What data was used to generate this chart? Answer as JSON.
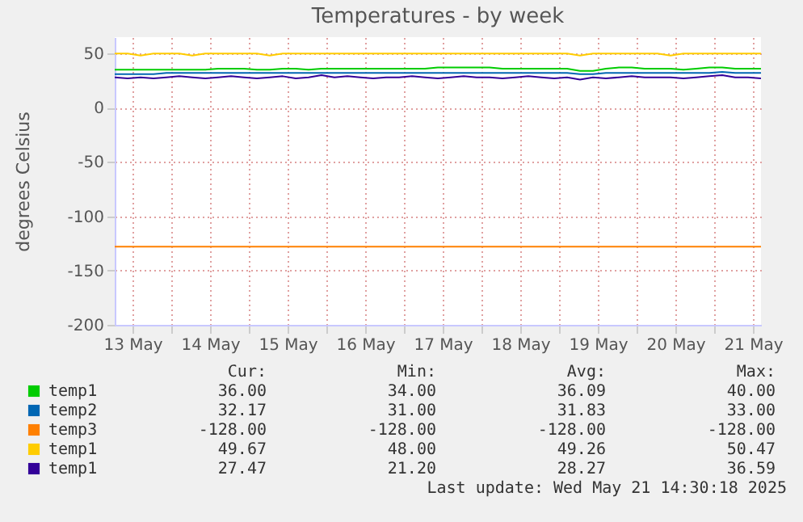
{
  "chart_data": {
    "type": "line",
    "title": "Temperatures - by week",
    "ylabel": "degrees Celsius",
    "x": [
      "2025-05-13T06:30",
      "2025-05-13T10:30",
      "2025-05-13T14:30",
      "2025-05-13T18:30",
      "2025-05-13T22:30",
      "2025-05-14T02:30",
      "2025-05-14T06:30",
      "2025-05-14T10:30",
      "2025-05-14T14:30",
      "2025-05-14T18:30",
      "2025-05-14T22:30",
      "2025-05-15T02:30",
      "2025-05-15T06:30",
      "2025-05-15T10:30",
      "2025-05-15T14:30",
      "2025-05-15T18:30",
      "2025-05-15T22:30",
      "2025-05-16T02:30",
      "2025-05-16T06:30",
      "2025-05-16T10:30",
      "2025-05-16T14:30",
      "2025-05-16T18:30",
      "2025-05-16T22:30",
      "2025-05-17T02:30",
      "2025-05-17T06:30",
      "2025-05-17T10:30",
      "2025-05-17T14:30",
      "2025-05-17T18:30",
      "2025-05-17T22:30",
      "2025-05-18T02:30",
      "2025-05-18T06:30",
      "2025-05-18T10:30",
      "2025-05-18T14:30",
      "2025-05-18T18:30",
      "2025-05-18T22:30",
      "2025-05-19T02:30",
      "2025-05-19T06:30",
      "2025-05-19T10:30",
      "2025-05-19T14:30",
      "2025-05-19T18:30",
      "2025-05-19T22:30",
      "2025-05-20T02:30",
      "2025-05-20T06:30",
      "2025-05-20T10:30",
      "2025-05-20T14:30",
      "2025-05-20T18:30",
      "2025-05-20T22:30",
      "2025-05-21T02:30",
      "2025-05-21T06:30",
      "2025-05-21T10:30",
      "2025-05-21T14:30"
    ],
    "series": [
      {
        "name": "temp1",
        "color": "#00cc00",
        "values": [
          35,
          35,
          35,
          35,
          35,
          35,
          35,
          35,
          36,
          36,
          36,
          35,
          35,
          36,
          36,
          35,
          36,
          36,
          36,
          36,
          36,
          36,
          36,
          36,
          36,
          37,
          37,
          37,
          37,
          37,
          36,
          36,
          36,
          36,
          36,
          36,
          34,
          34,
          36,
          37,
          37,
          36,
          36,
          36,
          35,
          36,
          37,
          37,
          36,
          36,
          36
        ]
      },
      {
        "name": "temp2",
        "color": "#0066b3",
        "values": [
          31,
          31,
          31,
          31,
          32,
          32,
          32,
          32,
          32,
          32,
          32,
          32,
          32,
          32,
          32,
          32,
          32,
          32,
          32,
          32,
          32,
          32,
          32,
          32,
          32,
          32,
          32,
          32,
          32,
          32,
          32,
          32,
          32,
          32,
          32,
          32,
          31,
          31,
          32,
          32,
          32,
          32,
          32,
          32,
          32,
          32,
          32,
          33,
          32,
          32,
          32
        ]
      },
      {
        "name": "temp3",
        "color": "#ff8000",
        "values": [
          -128,
          -128,
          -128,
          -128,
          -128,
          -128,
          -128,
          -128,
          -128,
          -128,
          -128,
          -128,
          -128,
          -128,
          -128,
          -128,
          -128,
          -128,
          -128,
          -128,
          -128,
          -128,
          -128,
          -128,
          -128,
          -128,
          -128,
          -128,
          -128,
          -128,
          -128,
          -128,
          -128,
          -128,
          -128,
          -128,
          -128,
          -128,
          -128,
          -128,
          -128,
          -128,
          -128,
          -128,
          -128,
          -128,
          -128,
          -128,
          -128,
          -128,
          -128
        ]
      },
      {
        "name": "temp1",
        "color": "#ffcc00",
        "values": [
          50,
          50,
          48,
          50,
          50,
          50,
          48,
          50,
          50,
          50,
          50,
          50,
          48,
          50,
          50,
          50,
          50,
          50,
          50,
          50,
          50,
          50,
          50,
          50,
          50,
          50,
          50,
          50,
          50,
          50,
          50,
          50,
          50,
          50,
          50,
          50,
          48,
          50,
          50,
          50,
          50,
          50,
          50,
          48,
          50,
          50,
          50,
          50,
          50,
          50,
          50
        ]
      },
      {
        "name": "temp1",
        "color": "#330099",
        "values": [
          28,
          27,
          28,
          27,
          28,
          29,
          28,
          27,
          28,
          29,
          28,
          27,
          28,
          29,
          27,
          28,
          30,
          28,
          29,
          28,
          27,
          28,
          28,
          29,
          28,
          27,
          28,
          29,
          28,
          28,
          27,
          28,
          29,
          28,
          27,
          28,
          26,
          28,
          27,
          28,
          29,
          28,
          28,
          28,
          27,
          28,
          29,
          30,
          28,
          28,
          27
        ]
      }
    ],
    "xlim": [
      "2025-05-13T06:30",
      "2025-05-21T14:30"
    ],
    "xticks": [
      {
        "value": "2025-05-13T12:00",
        "label": "13 May"
      },
      {
        "value": "2025-05-14T00:00",
        "label": null
      },
      {
        "value": "2025-05-14T12:00",
        "label": "14 May"
      },
      {
        "value": "2025-05-15T00:00",
        "label": null
      },
      {
        "value": "2025-05-15T12:00",
        "label": "15 May"
      },
      {
        "value": "2025-05-16T00:00",
        "label": null
      },
      {
        "value": "2025-05-16T12:00",
        "label": "16 May"
      },
      {
        "value": "2025-05-17T00:00",
        "label": null
      },
      {
        "value": "2025-05-17T12:00",
        "label": "17 May"
      },
      {
        "value": "2025-05-18T00:00",
        "label": null
      },
      {
        "value": "2025-05-18T12:00",
        "label": "18 May"
      },
      {
        "value": "2025-05-19T00:00",
        "label": null
      },
      {
        "value": "2025-05-19T12:00",
        "label": "19 May"
      },
      {
        "value": "2025-05-20T00:00",
        "label": null
      },
      {
        "value": "2025-05-20T12:00",
        "label": "20 May"
      },
      {
        "value": "2025-05-21T00:00",
        "label": null
      },
      {
        "value": "2025-05-21T12:00",
        "label": "21 May"
      }
    ],
    "ylim": [
      -200,
      65
    ],
    "yticks": [
      -200,
      -150,
      -100,
      -50,
      0,
      50
    ],
    "grid": true,
    "legend": "bottom",
    "annotations": [
      "Cur:",
      "Min:",
      "Avg:",
      "Max:",
      "36.00",
      "34.00",
      "36.09",
      "40.00",
      "32.17",
      "31.00",
      "31.83",
      "33.00",
      "-128.00",
      "-128.00",
      "-128.00",
      "-128.00",
      "49.67",
      "48.00",
      "49.26",
      "50.47",
      "27.47",
      "21.20",
      "28.27",
      "36.59",
      "Last update: Wed May 21 14:30:18 2025"
    ]
  }
}
